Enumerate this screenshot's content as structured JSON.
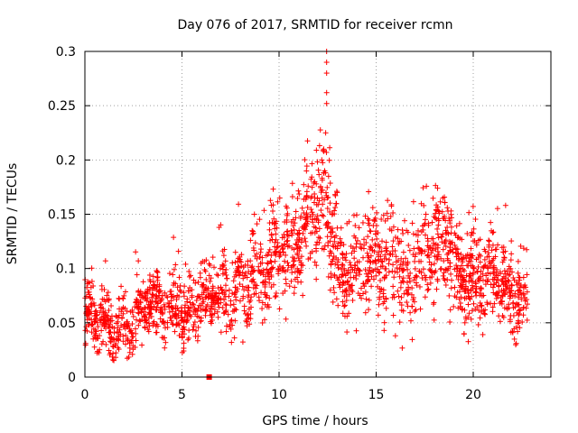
{
  "chart_data": {
    "type": "scatter",
    "title": "Day 076 of 2017, SRMTID for receiver rcmn",
    "xlabel": "GPS time / hours",
    "ylabel": "SRMTID / TECUs",
    "xlim": [
      0,
      24
    ],
    "ylim": [
      0,
      0.3
    ],
    "x_ticks": [
      0,
      5,
      10,
      15,
      20
    ],
    "x_tick_labels": [
      "0",
      "5",
      "10",
      "15",
      "20"
    ],
    "y_ticks": [
      0,
      0.05,
      0.1,
      0.15,
      0.2,
      0.25,
      0.3
    ],
    "y_tick_labels": [
      "0",
      "0.05",
      "0.1",
      "0.15",
      "0.2",
      "0.25",
      "0.3"
    ],
    "grid": true,
    "marker": "plus",
    "color": "#ff0000",
    "outlier_marker": {
      "x": 6.4,
      "y": 0.0
    },
    "trend_segments": [
      {
        "x": [
          0,
          1
        ],
        "y": [
          0.05,
          0.05
        ],
        "spread": 0.015
      },
      {
        "x": [
          1,
          3
        ],
        "y": [
          0.05,
          0.048
        ],
        "spread": 0.013
      },
      {
        "x": [
          3,
          5
        ],
        "y": [
          0.06,
          0.075
        ],
        "spread": 0.016
      },
      {
        "x": [
          5,
          7
        ],
        "y": [
          0.058,
          0.075
        ],
        "spread": 0.015
      },
      {
        "x": [
          7,
          9.5
        ],
        "y": [
          0.08,
          0.09
        ],
        "spread": 0.018
      },
      {
        "x": [
          9.5,
          11
        ],
        "y": [
          0.11,
          0.13
        ],
        "spread": 0.025
      },
      {
        "x": [
          11,
          12
        ],
        "y": [
          0.13,
          0.15
        ],
        "spread": 0.025
      },
      {
        "x": [
          12,
          13
        ],
        "y": [
          0.15,
          0.13
        ],
        "spread": 0.03
      },
      {
        "x": [
          13,
          15
        ],
        "y": [
          0.1,
          0.11
        ],
        "spread": 0.022
      },
      {
        "x": [
          15,
          17
        ],
        "y": [
          0.1,
          0.1
        ],
        "spread": 0.025
      },
      {
        "x": [
          17,
          19
        ],
        "y": [
          0.11,
          0.12
        ],
        "spread": 0.025
      },
      {
        "x": [
          19,
          21
        ],
        "y": [
          0.1,
          0.09
        ],
        "spread": 0.02
      },
      {
        "x": [
          21,
          22.8
        ],
        "y": [
          0.08,
          0.075
        ],
        "spread": 0.018
      }
    ],
    "spike_points": [
      {
        "x": 12.45,
        "y": 0.3
      },
      {
        "x": 12.45,
        "y": 0.29
      },
      {
        "x": 12.45,
        "y": 0.28
      },
      {
        "x": 12.45,
        "y": 0.262
      },
      {
        "x": 12.45,
        "y": 0.252
      },
      {
        "x": 12.3,
        "y": 0.21
      },
      {
        "x": 12.4,
        "y": 0.225
      },
      {
        "x": 12.2,
        "y": 0.2
      },
      {
        "x": 12.35,
        "y": 0.19
      },
      {
        "x": 12.55,
        "y": 0.185
      }
    ],
    "series_description_points": 2200
  }
}
